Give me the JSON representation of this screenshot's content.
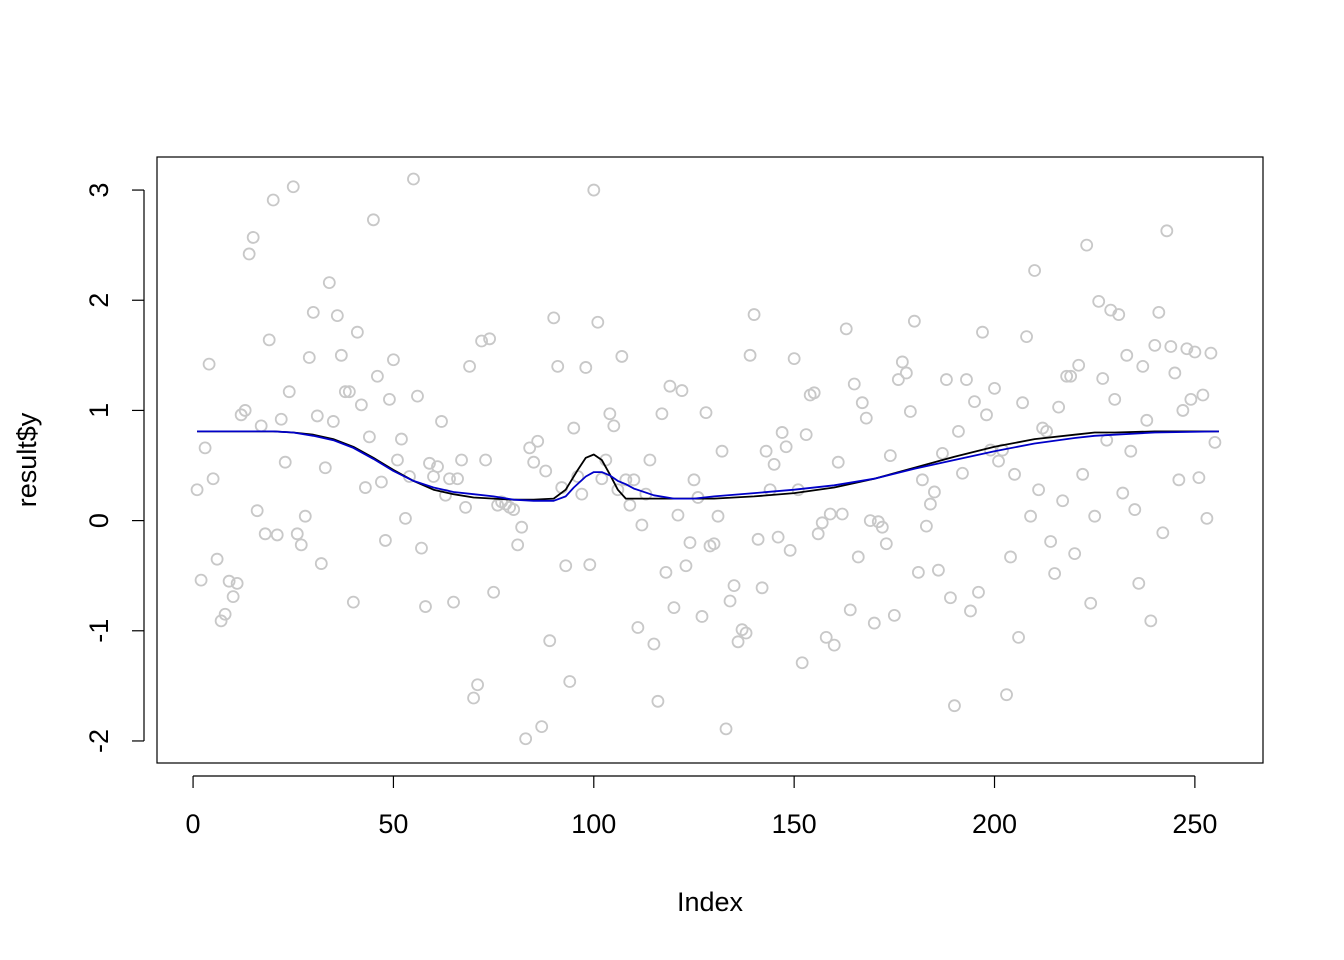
{
  "chart_data": {
    "type": "scatter",
    "title": "",
    "xlabel": "Index",
    "ylabel": "result$y",
    "xlim": [
      -9,
      267
    ],
    "ylim": [
      -2.2,
      3.3
    ],
    "xticks": [
      "0",
      "50",
      "100",
      "150",
      "200",
      "250"
    ],
    "yticks": [
      "-2",
      "-1",
      "0",
      "1",
      "2",
      "3"
    ],
    "grid": false,
    "legend": "none",
    "colors": {
      "points": "#c8c8c8",
      "truth": "#000000",
      "estimate": "#0000c8",
      "frame": "#000000"
    },
    "points": [
      [
        1,
        0.28
      ],
      [
        2,
        -0.54
      ],
      [
        3,
        0.66
      ],
      [
        4,
        1.42
      ],
      [
        5,
        0.38
      ],
      [
        6,
        -0.35
      ],
      [
        7,
        -0.91
      ],
      [
        8,
        -0.85
      ],
      [
        9,
        -0.55
      ],
      [
        10,
        -0.69
      ],
      [
        11,
        -0.57
      ],
      [
        12,
        0.96
      ],
      [
        13,
        1.0
      ],
      [
        14,
        2.42
      ],
      [
        15,
        2.57
      ],
      [
        16,
        0.09
      ],
      [
        17,
        0.86
      ],
      [
        18,
        -0.12
      ],
      [
        19,
        1.64
      ],
      [
        20,
        2.91
      ],
      [
        21,
        -0.13
      ],
      [
        22,
        0.92
      ],
      [
        23,
        0.53
      ],
      [
        24,
        1.17
      ],
      [
        25,
        3.03
      ],
      [
        26,
        -0.12
      ],
      [
        27,
        -0.22
      ],
      [
        28,
        0.04
      ],
      [
        29,
        1.48
      ],
      [
        30,
        1.89
      ],
      [
        31,
        0.95
      ],
      [
        32,
        -0.39
      ],
      [
        33,
        0.48
      ],
      [
        34,
        2.16
      ],
      [
        35,
        0.9
      ],
      [
        36,
        1.86
      ],
      [
        37,
        1.5
      ],
      [
        38,
        1.17
      ],
      [
        39,
        1.17
      ],
      [
        40,
        -0.74
      ],
      [
        41,
        1.71
      ],
      [
        42,
        1.05
      ],
      [
        43,
        0.3
      ],
      [
        44,
        0.76
      ],
      [
        45,
        2.73
      ],
      [
        46,
        1.31
      ],
      [
        47,
        0.35
      ],
      [
        48,
        -0.18
      ],
      [
        49,
        1.1
      ],
      [
        50,
        1.46
      ],
      [
        51,
        0.55
      ],
      [
        52,
        0.74
      ],
      [
        53,
        0.02
      ],
      [
        54,
        0.4
      ],
      [
        55,
        3.1
      ],
      [
        56,
        1.13
      ],
      [
        57,
        -0.25
      ],
      [
        58,
        -0.78
      ],
      [
        59,
        0.52
      ],
      [
        60,
        0.4
      ],
      [
        61,
        0.49
      ],
      [
        62,
        0.9
      ],
      [
        63,
        0.23
      ],
      [
        64,
        0.38
      ],
      [
        65,
        -0.74
      ],
      [
        66,
        0.38
      ],
      [
        67,
        0.55
      ],
      [
        68,
        0.12
      ],
      [
        69,
        1.4
      ],
      [
        70,
        -1.61
      ],
      [
        71,
        -1.49
      ],
      [
        72,
        1.63
      ],
      [
        73,
        0.55
      ],
      [
        74,
        1.65
      ],
      [
        75,
        -0.65
      ],
      [
        76,
        0.14
      ],
      [
        77,
        0.17
      ],
      [
        78,
        0.15
      ],
      [
        79,
        0.12
      ],
      [
        80,
        0.1
      ],
      [
        81,
        -0.22
      ],
      [
        82,
        -0.06
      ],
      [
        83,
        -1.98
      ],
      [
        84,
        0.66
      ],
      [
        85,
        0.53
      ],
      [
        86,
        0.72
      ],
      [
        87,
        -1.87
      ],
      [
        88,
        0.45
      ],
      [
        89,
        -1.09
      ],
      [
        90,
        1.84
      ],
      [
        91,
        1.4
      ],
      [
        92,
        0.3
      ],
      [
        93,
        -0.41
      ],
      [
        94,
        -1.46
      ],
      [
        95,
        0.84
      ],
      [
        96,
        0.4
      ],
      [
        97,
        0.24
      ],
      [
        98,
        1.39
      ],
      [
        99,
        -0.4
      ],
      [
        100,
        3.0
      ],
      [
        101,
        1.8
      ],
      [
        102,
        0.38
      ],
      [
        103,
        0.55
      ],
      [
        104,
        0.97
      ],
      [
        105,
        0.86
      ],
      [
        106,
        0.28
      ],
      [
        107,
        1.49
      ],
      [
        108,
        0.37
      ],
      [
        109,
        0.14
      ],
      [
        110,
        0.37
      ],
      [
        111,
        -0.97
      ],
      [
        112,
        -0.04
      ],
      [
        113,
        0.24
      ],
      [
        114,
        0.55
      ],
      [
        115,
        -1.12
      ],
      [
        116,
        -1.64
      ],
      [
        117,
        0.97
      ],
      [
        118,
        -0.47
      ],
      [
        119,
        1.22
      ],
      [
        120,
        -0.79
      ],
      [
        121,
        0.05
      ],
      [
        122,
        1.18
      ],
      [
        123,
        -0.41
      ],
      [
        124,
        -0.2
      ],
      [
        125,
        0.37
      ],
      [
        126,
        0.21
      ],
      [
        127,
        -0.87
      ],
      [
        128,
        0.98
      ],
      [
        129,
        -0.23
      ],
      [
        130,
        -0.21
      ],
      [
        131,
        0.04
      ],
      [
        132,
        0.63
      ],
      [
        133,
        -1.89
      ],
      [
        134,
        -0.73
      ],
      [
        135,
        -0.59
      ],
      [
        136,
        -1.1
      ],
      [
        137,
        -0.99
      ],
      [
        138,
        -1.02
      ],
      [
        139,
        1.5
      ],
      [
        140,
        1.87
      ],
      [
        141,
        -0.17
      ],
      [
        142,
        -0.61
      ],
      [
        143,
        0.63
      ],
      [
        144,
        0.28
      ],
      [
        145,
        0.51
      ],
      [
        146,
        -0.15
      ],
      [
        147,
        0.8
      ],
      [
        148,
        0.67
      ],
      [
        149,
        -0.27
      ],
      [
        150,
        1.47
      ],
      [
        151,
        0.28
      ],
      [
        152,
        -1.29
      ],
      [
        153,
        0.78
      ],
      [
        154,
        1.14
      ],
      [
        155,
        1.16
      ],
      [
        156,
        -0.12
      ],
      [
        157,
        -0.02
      ],
      [
        158,
        -1.06
      ],
      [
        159,
        0.06
      ],
      [
        160,
        -1.13
      ],
      [
        161,
        0.53
      ],
      [
        162,
        0.06
      ],
      [
        163,
        1.74
      ],
      [
        164,
        -0.81
      ],
      [
        165,
        1.24
      ],
      [
        166,
        -0.33
      ],
      [
        167,
        1.07
      ],
      [
        168,
        0.93
      ],
      [
        169,
        0.0
      ],
      [
        170,
        -0.93
      ],
      [
        171,
        -0.01
      ],
      [
        172,
        -0.06
      ],
      [
        173,
        -0.21
      ],
      [
        174,
        0.59
      ],
      [
        175,
        -0.86
      ],
      [
        176,
        1.28
      ],
      [
        177,
        1.44
      ],
      [
        178,
        1.34
      ],
      [
        179,
        0.99
      ],
      [
        180,
        1.81
      ],
      [
        181,
        -0.47
      ],
      [
        182,
        0.37
      ],
      [
        183,
        -0.05
      ],
      [
        184,
        0.15
      ],
      [
        185,
        0.26
      ],
      [
        186,
        -0.45
      ],
      [
        187,
        0.61
      ],
      [
        188,
        1.28
      ],
      [
        189,
        -0.7
      ],
      [
        190,
        -1.68
      ],
      [
        191,
        0.81
      ],
      [
        192,
        0.43
      ],
      [
        193,
        1.28
      ],
      [
        194,
        -0.82
      ],
      [
        195,
        1.08
      ],
      [
        196,
        -0.65
      ],
      [
        197,
        1.71
      ],
      [
        198,
        0.96
      ],
      [
        199,
        0.64
      ],
      [
        200,
        1.2
      ],
      [
        201,
        0.54
      ],
      [
        202,
        0.64
      ],
      [
        203,
        -1.58
      ],
      [
        204,
        -0.33
      ],
      [
        205,
        0.42
      ],
      [
        206,
        -1.06
      ],
      [
        207,
        1.07
      ],
      [
        208,
        1.67
      ],
      [
        209,
        0.04
      ],
      [
        210,
        2.27
      ],
      [
        211,
        0.28
      ],
      [
        212,
        0.84
      ],
      [
        213,
        0.81
      ],
      [
        214,
        -0.19
      ],
      [
        215,
        -0.48
      ],
      [
        216,
        1.03
      ],
      [
        217,
        0.18
      ],
      [
        218,
        1.31
      ],
      [
        219,
        1.31
      ],
      [
        220,
        -0.3
      ],
      [
        221,
        1.41
      ],
      [
        222,
        0.42
      ],
      [
        223,
        2.5
      ],
      [
        224,
        -0.75
      ],
      [
        225,
        0.04
      ],
      [
        226,
        1.99
      ],
      [
        227,
        1.29
      ],
      [
        228,
        0.73
      ],
      [
        229,
        1.91
      ],
      [
        230,
        1.1
      ],
      [
        231,
        1.87
      ],
      [
        232,
        0.25
      ],
      [
        233,
        1.5
      ],
      [
        234,
        0.63
      ],
      [
        235,
        0.1
      ],
      [
        236,
        -0.57
      ],
      [
        237,
        1.4
      ],
      [
        238,
        0.91
      ],
      [
        239,
        -0.91
      ],
      [
        240,
        1.59
      ],
      [
        241,
        1.89
      ],
      [
        242,
        -0.11
      ],
      [
        243,
        2.63
      ],
      [
        244,
        1.58
      ],
      [
        245,
        1.34
      ],
      [
        246,
        0.37
      ],
      [
        247,
        1.0
      ],
      [
        248,
        1.56
      ],
      [
        249,
        1.1
      ],
      [
        250,
        1.53
      ],
      [
        251,
        0.39
      ],
      [
        252,
        1.14
      ],
      [
        253,
        0.02
      ],
      [
        254,
        1.52
      ],
      [
        255,
        0.71
      ]
    ],
    "series": [
      {
        "color": "#000000",
        "x": [
          1,
          10,
          20,
          25,
          30,
          35,
          40,
          45,
          50,
          55,
          60,
          65,
          70,
          75,
          80,
          85,
          90,
          93,
          96,
          98,
          100,
          102,
          104,
          106,
          108,
          110,
          120,
          125,
          130,
          140,
          150,
          160,
          170,
          180,
          190,
          200,
          210,
          220,
          225,
          230,
          240,
          256
        ],
        "y": [
          0.81,
          0.81,
          0.81,
          0.8,
          0.78,
          0.74,
          0.67,
          0.57,
          0.46,
          0.36,
          0.28,
          0.24,
          0.21,
          0.2,
          0.19,
          0.19,
          0.2,
          0.28,
          0.46,
          0.57,
          0.6,
          0.55,
          0.42,
          0.28,
          0.2,
          0.2,
          0.2,
          0.2,
          0.2,
          0.22,
          0.25,
          0.3,
          0.38,
          0.48,
          0.58,
          0.67,
          0.74,
          0.78,
          0.8,
          0.8,
          0.81,
          0.81
        ]
      },
      {
        "color": "#0000c8",
        "x": [
          1,
          10,
          20,
          25,
          30,
          35,
          40,
          45,
          50,
          55,
          60,
          65,
          70,
          75,
          80,
          85,
          90,
          93,
          95,
          98,
          100,
          102,
          104,
          106,
          108,
          110,
          115,
          120,
          125,
          130,
          140,
          150,
          160,
          170,
          180,
          190,
          200,
          210,
          220,
          225,
          230,
          240,
          256
        ],
        "y": [
          0.81,
          0.81,
          0.81,
          0.8,
          0.77,
          0.73,
          0.66,
          0.56,
          0.45,
          0.36,
          0.3,
          0.26,
          0.24,
          0.22,
          0.19,
          0.18,
          0.18,
          0.22,
          0.3,
          0.4,
          0.44,
          0.44,
          0.41,
          0.36,
          0.33,
          0.29,
          0.23,
          0.2,
          0.2,
          0.22,
          0.25,
          0.28,
          0.32,
          0.38,
          0.47,
          0.55,
          0.63,
          0.7,
          0.75,
          0.77,
          0.78,
          0.8,
          0.81
        ]
      }
    ]
  }
}
